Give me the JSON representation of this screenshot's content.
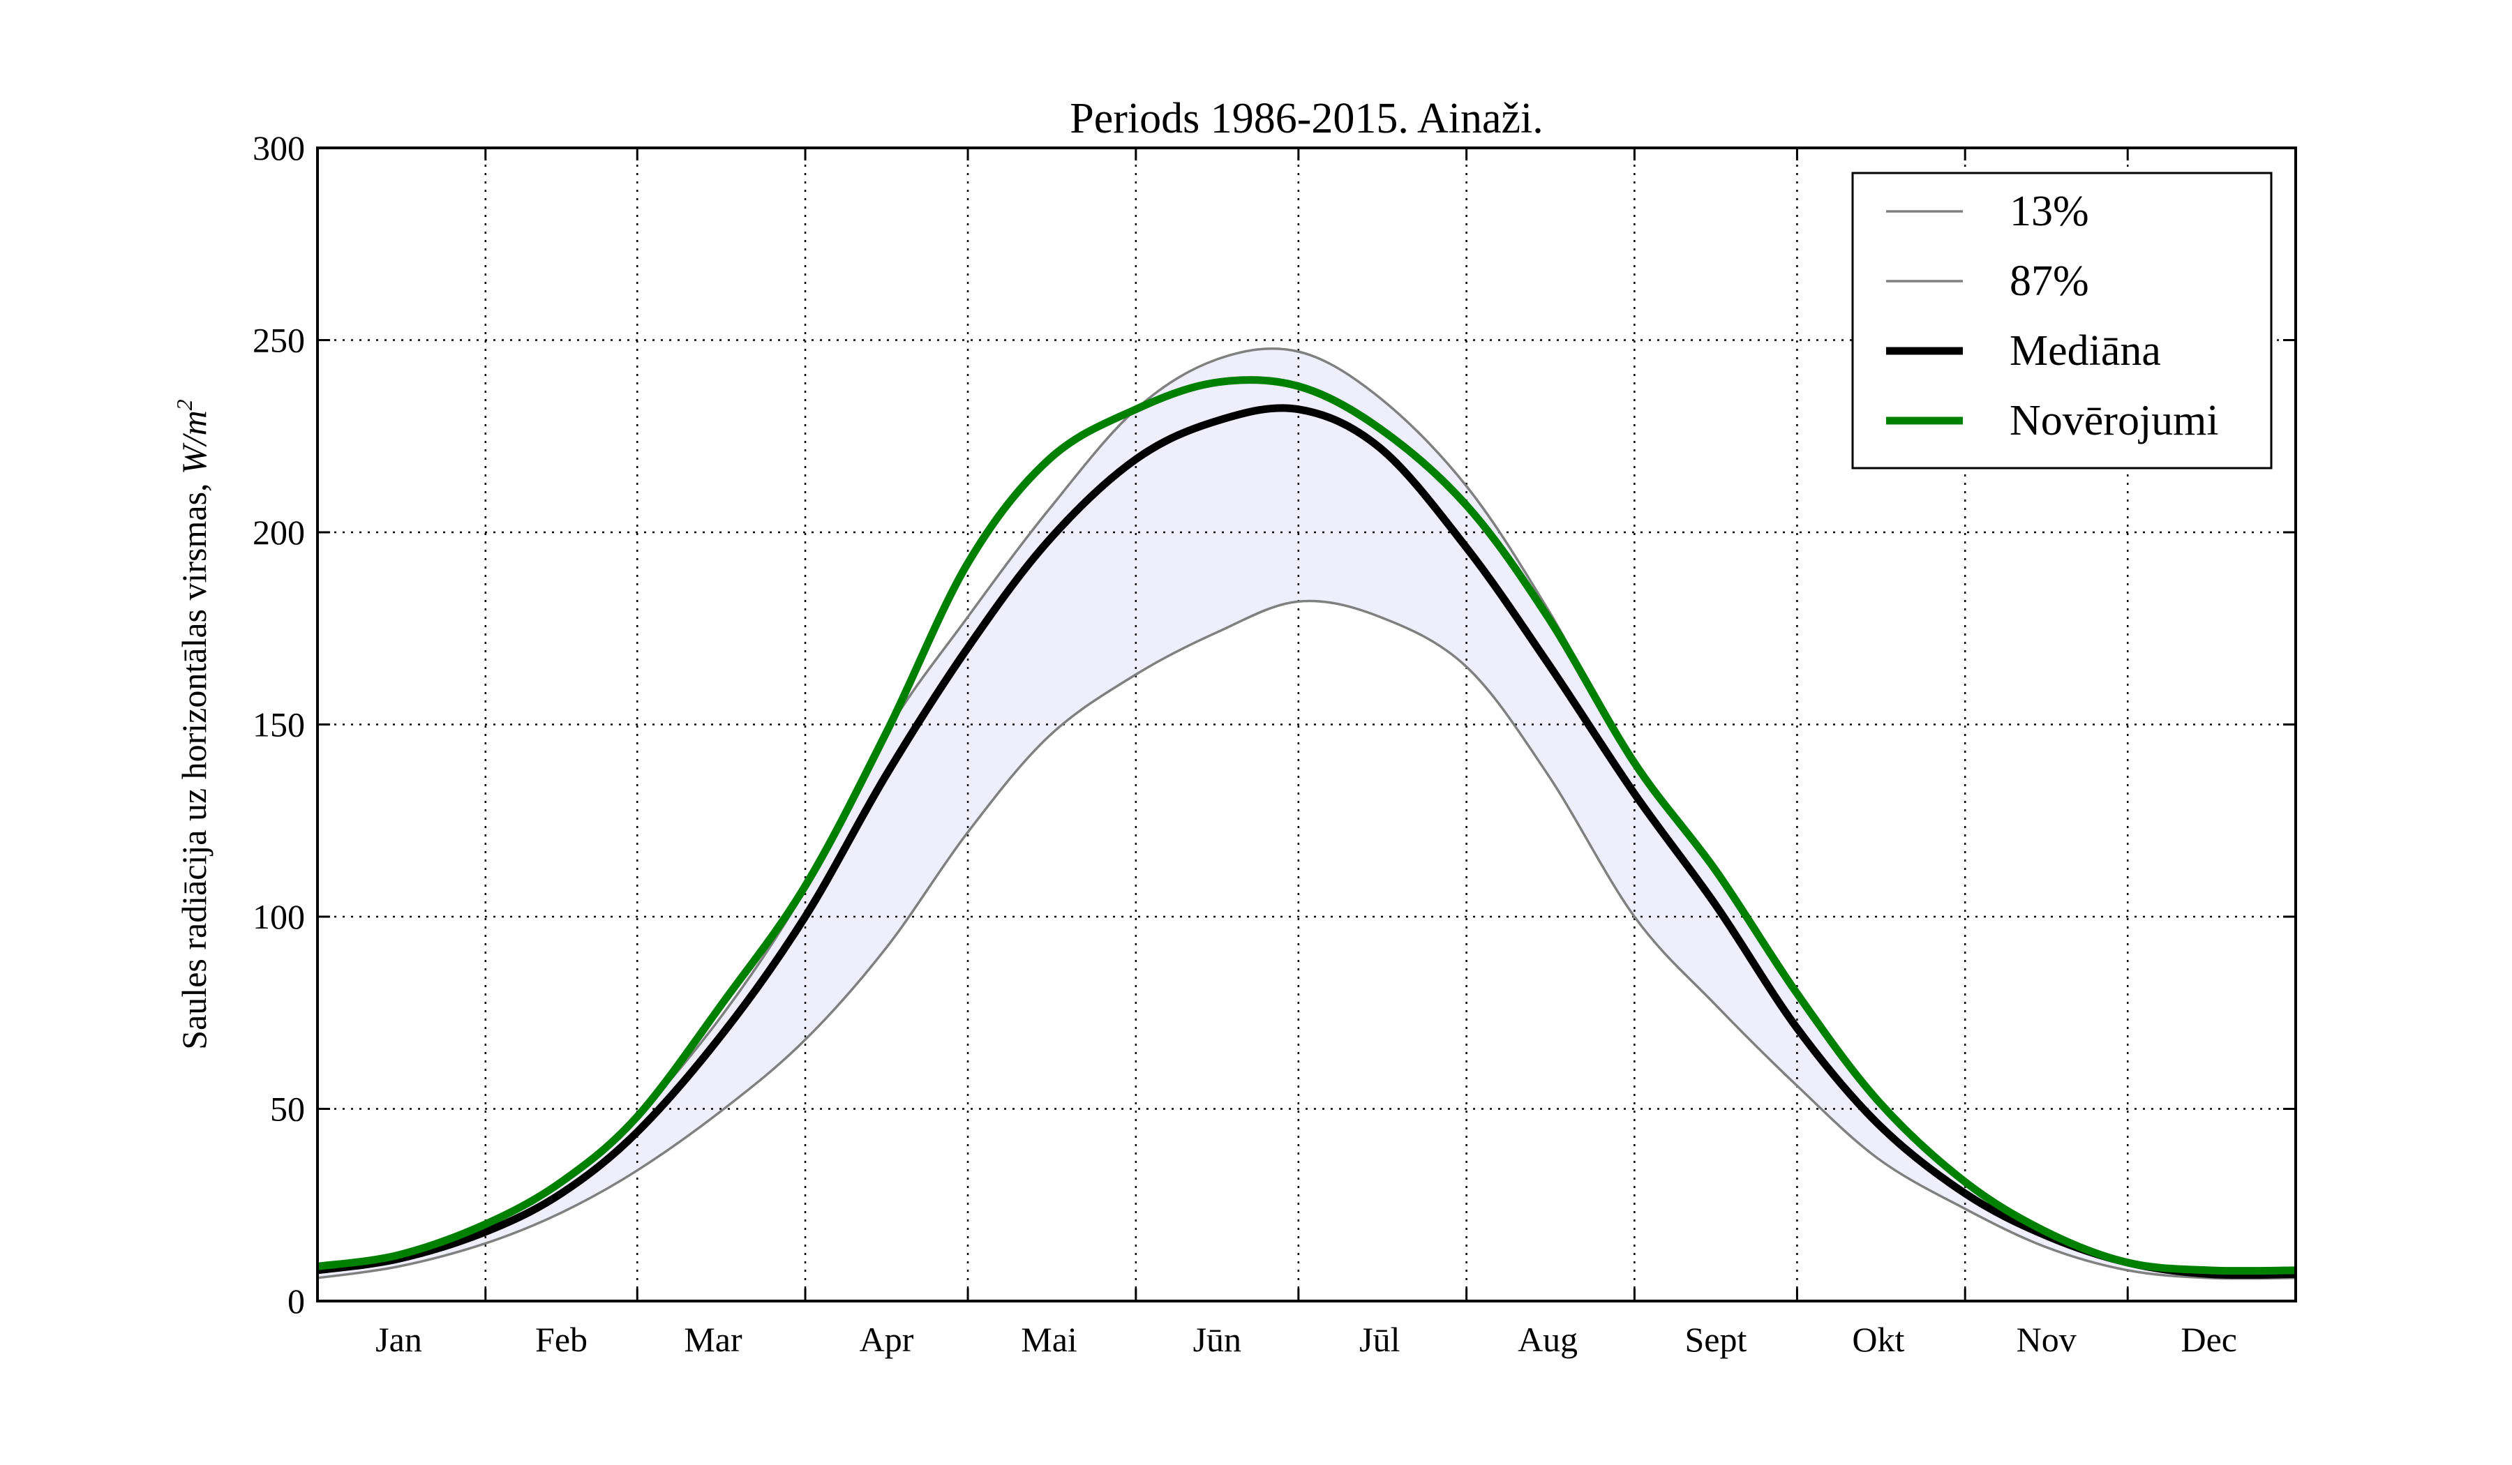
{
  "chart_data": {
    "type": "line",
    "title": "Periods 1986-2015. Ainaži.",
    "ylabel_prefix": "Saules radiācija uz horizontālas virsmas, ",
    "ylabel_unit": "W/m",
    "ylabel_unit_exp": "2",
    "xlabel": "",
    "ylim": [
      0,
      300
    ],
    "yticks": [
      0,
      50,
      100,
      150,
      200,
      250,
      300
    ],
    "xlim": [
      0,
      365
    ],
    "month_boundaries": [
      31,
      59,
      90,
      120,
      151,
      181,
      212,
      243,
      273,
      304,
      334
    ],
    "month_labels": [
      {
        "label": "Jan",
        "day": 15
      },
      {
        "label": "Feb",
        "day": 45
      },
      {
        "label": "Mar",
        "day": 73
      },
      {
        "label": "Apr",
        "day": 105
      },
      {
        "label": "Mai",
        "day": 135
      },
      {
        "label": "Jūn",
        "day": 166
      },
      {
        "label": "Jūl",
        "day": 196
      },
      {
        "label": "Aug",
        "day": 227
      },
      {
        "label": "Sept",
        "day": 258
      },
      {
        "label": "Okt",
        "day": 288
      },
      {
        "label": "Nov",
        "day": 319
      },
      {
        "label": "Dec",
        "day": 349
      }
    ],
    "grid": true,
    "legend_position": "top-right",
    "band_fill_color": "#eeeefc",
    "series": [
      {
        "name": "13%",
        "color": "#808080",
        "width": "thin",
        "points": [
          [
            0,
            6
          ],
          [
            15,
            9
          ],
          [
            31,
            15
          ],
          [
            45,
            23
          ],
          [
            59,
            34
          ],
          [
            75,
            50
          ],
          [
            90,
            68
          ],
          [
            105,
            92
          ],
          [
            120,
            122
          ],
          [
            135,
            147
          ],
          [
            151,
            163
          ],
          [
            166,
            174
          ],
          [
            181,
            182
          ],
          [
            196,
            178
          ],
          [
            212,
            165
          ],
          [
            227,
            137
          ],
          [
            243,
            100
          ],
          [
            258,
            77
          ],
          [
            273,
            56
          ],
          [
            288,
            37
          ],
          [
            304,
            24
          ],
          [
            319,
            14
          ],
          [
            334,
            8
          ],
          [
            349,
            6
          ],
          [
            365,
            6
          ]
        ]
      },
      {
        "name": "87%",
        "color": "#808080",
        "width": "thin",
        "points": [
          [
            0,
            8
          ],
          [
            15,
            12
          ],
          [
            31,
            20
          ],
          [
            45,
            31
          ],
          [
            59,
            48
          ],
          [
            75,
            75
          ],
          [
            90,
            107
          ],
          [
            105,
            148
          ],
          [
            120,
            178
          ],
          [
            135,
            206
          ],
          [
            151,
            232
          ],
          [
            166,
            245
          ],
          [
            181,
            247
          ],
          [
            196,
            235
          ],
          [
            212,
            212
          ],
          [
            227,
            180
          ],
          [
            243,
            140
          ],
          [
            258,
            112
          ],
          [
            273,
            80
          ],
          [
            288,
            52
          ],
          [
            304,
            31
          ],
          [
            319,
            18
          ],
          [
            334,
            10
          ],
          [
            349,
            8
          ],
          [
            365,
            8
          ]
        ]
      },
      {
        "name": "Mediāna",
        "color": "#000000",
        "width": "thick",
        "points": [
          [
            0,
            8
          ],
          [
            15,
            11
          ],
          [
            31,
            18
          ],
          [
            45,
            28
          ],
          [
            59,
            44
          ],
          [
            75,
            70
          ],
          [
            90,
            100
          ],
          [
            105,
            137
          ],
          [
            120,
            170
          ],
          [
            135,
            198
          ],
          [
            151,
            219
          ],
          [
            166,
            229
          ],
          [
            181,
            232
          ],
          [
            196,
            222
          ],
          [
            212,
            196
          ],
          [
            227,
            166
          ],
          [
            243,
            132
          ],
          [
            258,
            103
          ],
          [
            273,
            71
          ],
          [
            288,
            46
          ],
          [
            304,
            28
          ],
          [
            319,
            17
          ],
          [
            334,
            10
          ],
          [
            349,
            7
          ],
          [
            365,
            7
          ]
        ]
      },
      {
        "name": "Novērojumi",
        "color": "#008000",
        "width": "thick",
        "points": [
          [
            0,
            9
          ],
          [
            15,
            12
          ],
          [
            31,
            20
          ],
          [
            45,
            31
          ],
          [
            59,
            48
          ],
          [
            75,
            78
          ],
          [
            90,
            108
          ],
          [
            105,
            148
          ],
          [
            120,
            192
          ],
          [
            135,
            219
          ],
          [
            151,
            232
          ],
          [
            166,
            239
          ],
          [
            181,
            238
          ],
          [
            196,
            227
          ],
          [
            212,
            207
          ],
          [
            227,
            178
          ],
          [
            243,
            140
          ],
          [
            258,
            112
          ],
          [
            273,
            80
          ],
          [
            288,
            52
          ],
          [
            304,
            31
          ],
          [
            319,
            18
          ],
          [
            334,
            10
          ],
          [
            349,
            8
          ],
          [
            365,
            8
          ]
        ]
      }
    ]
  }
}
